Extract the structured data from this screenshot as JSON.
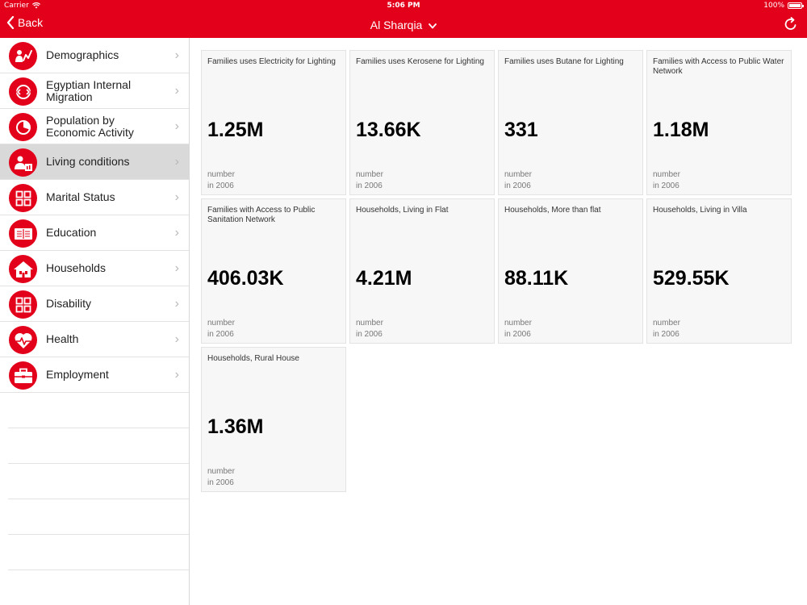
{
  "status_bar": {
    "carrier": "Carrier",
    "time": "5:06 PM",
    "battery": "100%"
  },
  "nav": {
    "back_label": "Back",
    "title": "Al Sharqia"
  },
  "sidebar": {
    "items": [
      {
        "label": "Demographics",
        "icon": "demographics-icon"
      },
      {
        "label": "Egyptian Internal Migration",
        "icon": "migration-icon"
      },
      {
        "label": "Population by Economic Activity",
        "icon": "pie-chart-icon"
      },
      {
        "label": "Living conditions",
        "icon": "living-conditions-icon",
        "active": true
      },
      {
        "label": "Marital Status",
        "icon": "grid-icon"
      },
      {
        "label": "Education",
        "icon": "book-icon"
      },
      {
        "label": "Households",
        "icon": "house-icon"
      },
      {
        "label": "Disability",
        "icon": "grid-icon"
      },
      {
        "label": "Health",
        "icon": "heart-icon"
      },
      {
        "label": "Employment",
        "icon": "briefcase-icon"
      }
    ]
  },
  "cards": [
    {
      "title": "Families uses Electricity for Lighting",
      "value": "1.25M",
      "unit": "number",
      "year": "in 2006"
    },
    {
      "title": "Families uses Kerosene for Lighting",
      "value": "13.66K",
      "unit": "number",
      "year": "in 2006"
    },
    {
      "title": "Families uses Butane for Lighting",
      "value": "331",
      "unit": "number",
      "year": "in 2006"
    },
    {
      "title": "Families with Access to Public Water Network",
      "value": "1.18M",
      "unit": "number",
      "year": "in 2006"
    },
    {
      "title": "Families with Access to Public Sanitation Network",
      "value": "406.03K",
      "unit": "number",
      "year": "in 2006"
    },
    {
      "title": "Households, Living in Flat",
      "value": "4.21M",
      "unit": "number",
      "year": "in 2006"
    },
    {
      "title": "Households, More than flat",
      "value": "88.11K",
      "unit": "number",
      "year": "in 2006"
    },
    {
      "title": "Households, Living in Villa",
      "value": "529.55K",
      "unit": "number",
      "year": "in 2006"
    },
    {
      "title": "Households, Rural House",
      "value": "1.36M",
      "unit": "number",
      "year": "in 2006"
    }
  ],
  "colors": {
    "brand": "#e2001a",
    "active_row": "#d9d9d9",
    "card_bg": "#f7f7f7"
  }
}
